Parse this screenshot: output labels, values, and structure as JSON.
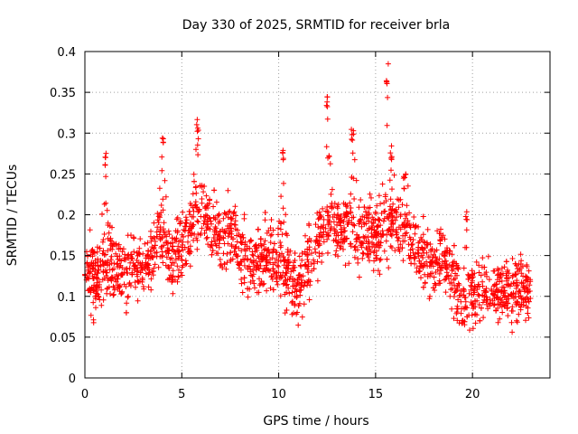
{
  "chart_data": {
    "type": "scatter",
    "title": "Day 330 of 2025, SRMTID for receiver brla",
    "xlabel": "GPS time / hours",
    "ylabel": "SRMTID / TECUs",
    "xlim": [
      0,
      24
    ],
    "ylim": [
      0,
      0.4
    ],
    "grid": true,
    "marker": "+",
    "marker_color": "#ff0000",
    "x_ticks": [
      0,
      5,
      10,
      15,
      20
    ],
    "x_tick_labels": [
      "0",
      "5",
      "10",
      "15",
      "20"
    ],
    "y_ticks": [
      0,
      0.05,
      0.1,
      0.15,
      0.2,
      0.25,
      0.3,
      0.35,
      0.4
    ],
    "y_tick_labels": [
      "0",
      "0.05",
      "0.1",
      "0.15",
      "0.2",
      "0.25",
      "0.3",
      "0.35",
      "0.4"
    ],
    "series": [
      {
        "name": "SRMTID",
        "x_range": [
          0,
          23.0
        ],
        "profile": [
          [
            0.0,
            0.14
          ],
          [
            0.5,
            0.12
          ],
          [
            1.0,
            0.13
          ],
          [
            1.5,
            0.14
          ],
          [
            2.0,
            0.12
          ],
          [
            2.5,
            0.14
          ],
          [
            3.0,
            0.13
          ],
          [
            3.5,
            0.15
          ],
          [
            4.0,
            0.18
          ],
          [
            4.5,
            0.14
          ],
          [
            5.0,
            0.16
          ],
          [
            5.5,
            0.18
          ],
          [
            6.0,
            0.2
          ],
          [
            6.5,
            0.19
          ],
          [
            7.0,
            0.17
          ],
          [
            7.5,
            0.18
          ],
          [
            8.0,
            0.16
          ],
          [
            8.5,
            0.14
          ],
          [
            9.0,
            0.15
          ],
          [
            9.5,
            0.15
          ],
          [
            10.0,
            0.14
          ],
          [
            10.5,
            0.13
          ],
          [
            11.0,
            0.11
          ],
          [
            11.5,
            0.14
          ],
          [
            12.0,
            0.17
          ],
          [
            12.5,
            0.19
          ],
          [
            13.0,
            0.18
          ],
          [
            13.5,
            0.19
          ],
          [
            14.0,
            0.17
          ],
          [
            14.5,
            0.18
          ],
          [
            15.0,
            0.17
          ],
          [
            15.5,
            0.19
          ],
          [
            16.0,
            0.19
          ],
          [
            16.5,
            0.18
          ],
          [
            17.0,
            0.17
          ],
          [
            17.5,
            0.15
          ],
          [
            18.0,
            0.14
          ],
          [
            18.5,
            0.15
          ],
          [
            19.0,
            0.12
          ],
          [
            19.5,
            0.09
          ],
          [
            20.0,
            0.1
          ],
          [
            20.5,
            0.11
          ],
          [
            21.0,
            0.1
          ],
          [
            21.5,
            0.11
          ],
          [
            22.0,
            0.1
          ],
          [
            22.5,
            0.11
          ],
          [
            23.0,
            0.1
          ]
        ],
        "peaks": [
          [
            1.1,
            0.285
          ],
          [
            4.0,
            0.295
          ],
          [
            5.8,
            0.325
          ],
          [
            10.2,
            0.28
          ],
          [
            12.5,
            0.35
          ],
          [
            13.8,
            0.31
          ],
          [
            15.6,
            0.385
          ],
          [
            15.8,
            0.29
          ],
          [
            16.5,
            0.255
          ],
          [
            19.7,
            0.205
          ]
        ],
        "min_y": 0.04,
        "max_y": 0.385
      }
    ]
  }
}
